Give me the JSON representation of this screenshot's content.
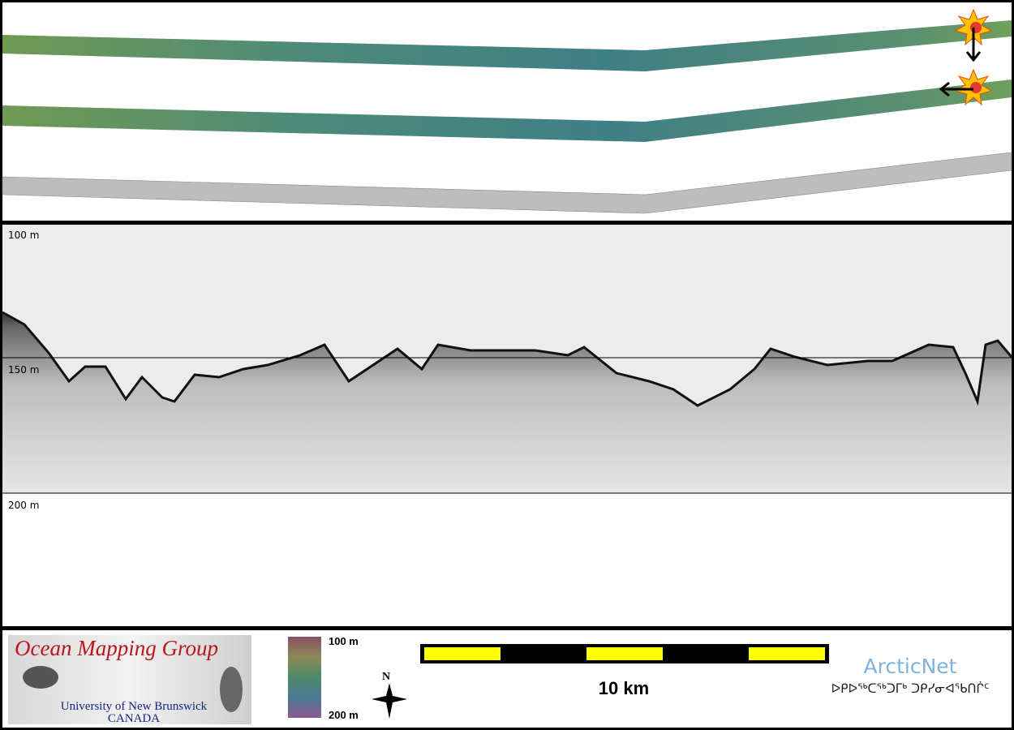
{
  "echogram": {
    "depth_labels": [
      "100 m",
      "150 m",
      "200 m"
    ]
  },
  "footer": {
    "logo": {
      "title": "Ocean Mapping Group",
      "university": "University of New Brunswick",
      "country": "CANADA"
    },
    "colorbar": {
      "top_label": "100 m",
      "bottom_label": "200 m"
    },
    "north_label": "N",
    "scale_label": "10 km",
    "partner": {
      "name": "ArcticNet",
      "syllabics": "ᐅᑭᐅᖅᑕᖅᑐᒥᒃ ᑐᑭᓯᓂᐊᖃᑎᒌᑦ"
    }
  }
}
